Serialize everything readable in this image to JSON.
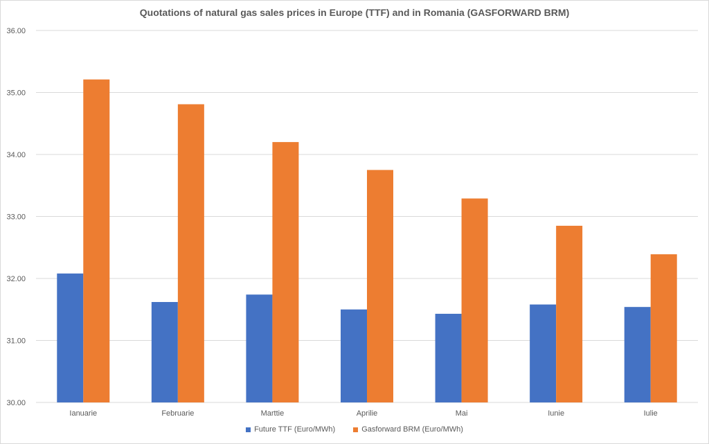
{
  "chart_data": {
    "type": "bar",
    "title": "Quotations of natural gas sales prices in Europe (TTF) and in Romania (GASFORWARD BRM)",
    "xlabel": "",
    "ylabel": "",
    "categories": [
      "Ianuarie",
      "Februarie",
      "Marttie",
      "Aprilie",
      "Mai",
      "Iunie",
      "Iulie"
    ],
    "series": [
      {
        "name": "Future TTF (Euro/MWh)",
        "color": "#4472c4",
        "values": [
          32.08,
          31.62,
          31.74,
          31.5,
          31.43,
          31.58,
          31.54
        ]
      },
      {
        "name": "Gasforward BRM (Euro/MWh)",
        "color": "#ed7d31",
        "values": [
          35.21,
          34.81,
          34.2,
          33.75,
          33.29,
          32.85,
          32.39
        ]
      }
    ],
    "ylim": [
      30,
      36
    ],
    "yticks": [
      "30.00",
      "31.00",
      "32.00",
      "33.00",
      "34.00",
      "35.00",
      "36.00"
    ],
    "grid": true,
    "legend_position": "bottom"
  }
}
